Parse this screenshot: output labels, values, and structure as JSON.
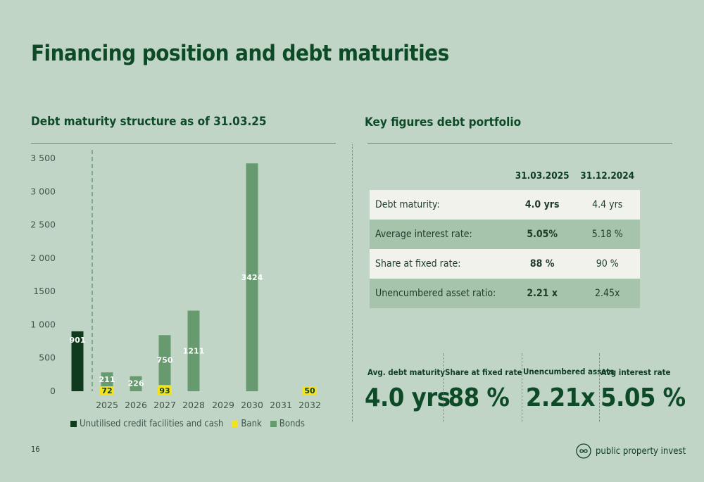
{
  "page": {
    "title": "Financing position and debt maturities",
    "number": "16"
  },
  "left_section": {
    "title": "Debt maturity structure as of 31.03.25"
  },
  "right_section": {
    "title": "Key figures debt portfolio"
  },
  "chart_data": {
    "type": "bar",
    "stacked": true,
    "title": "Debt maturity structure as of 31.03.25",
    "categories": [
      "",
      "2025",
      "2026",
      "2027",
      "2028",
      "2029",
      "2030",
      "2031",
      "2032"
    ],
    "series": [
      {
        "name": "Unutilised credit facilities and cash",
        "color": "#0f3a1e",
        "label_color": "#ffffff",
        "values": [
          901,
          0,
          0,
          0,
          0,
          0,
          0,
          0,
          0
        ]
      },
      {
        "name": "Bank",
        "color": "#f4e21f",
        "label_color": "#0d3d22",
        "values": [
          0,
          72,
          0,
          93,
          0,
          0,
          0,
          0,
          50
        ]
      },
      {
        "name": "Bonds",
        "color": "#679b6f",
        "label_color": "#ffffff",
        "values": [
          0,
          211,
          226,
          750,
          1211,
          0,
          3424,
          0,
          0
        ]
      }
    ],
    "y_ticks": [
      "0",
      "500",
      "1 000",
      "1500",
      "2 000",
      "2 500",
      "3 000",
      "3 500"
    ],
    "y_tick_values": [
      0,
      500,
      1000,
      1500,
      2000,
      2500,
      3000,
      3500
    ],
    "ylim": [
      0,
      3500
    ],
    "separator": "dashed line between cash column and 2025",
    "grid": false,
    "legend_position": "bottom"
  },
  "key_figures": {
    "columns": [
      "31.03.2025",
      "31.12.2024"
    ],
    "rows": [
      {
        "label": "Debt maturity:",
        "current": "4.0 yrs",
        "previous": "4.4 yrs"
      },
      {
        "label": "Average interest rate:",
        "current": "5.05%",
        "previous": "5.18 %"
      },
      {
        "label": "Share at fixed rate:",
        "current": "88 %",
        "previous": "90 %"
      },
      {
        "label": "Unencumbered asset ratio:",
        "current": "2.21 x",
        "previous": "2.45x"
      }
    ]
  },
  "kpis": [
    {
      "label": "Avg. debt maturity",
      "value": "4.0 yrs"
    },
    {
      "label": "Share at fixed rate",
      "value": "88 %"
    },
    {
      "label": "Unencumbered assets",
      "value": "2.21x"
    },
    {
      "label": "Avg interest rate",
      "value": "5.05 %"
    }
  ],
  "logo": {
    "text": "public property invest",
    "icon": "infinity-circle-icon"
  }
}
